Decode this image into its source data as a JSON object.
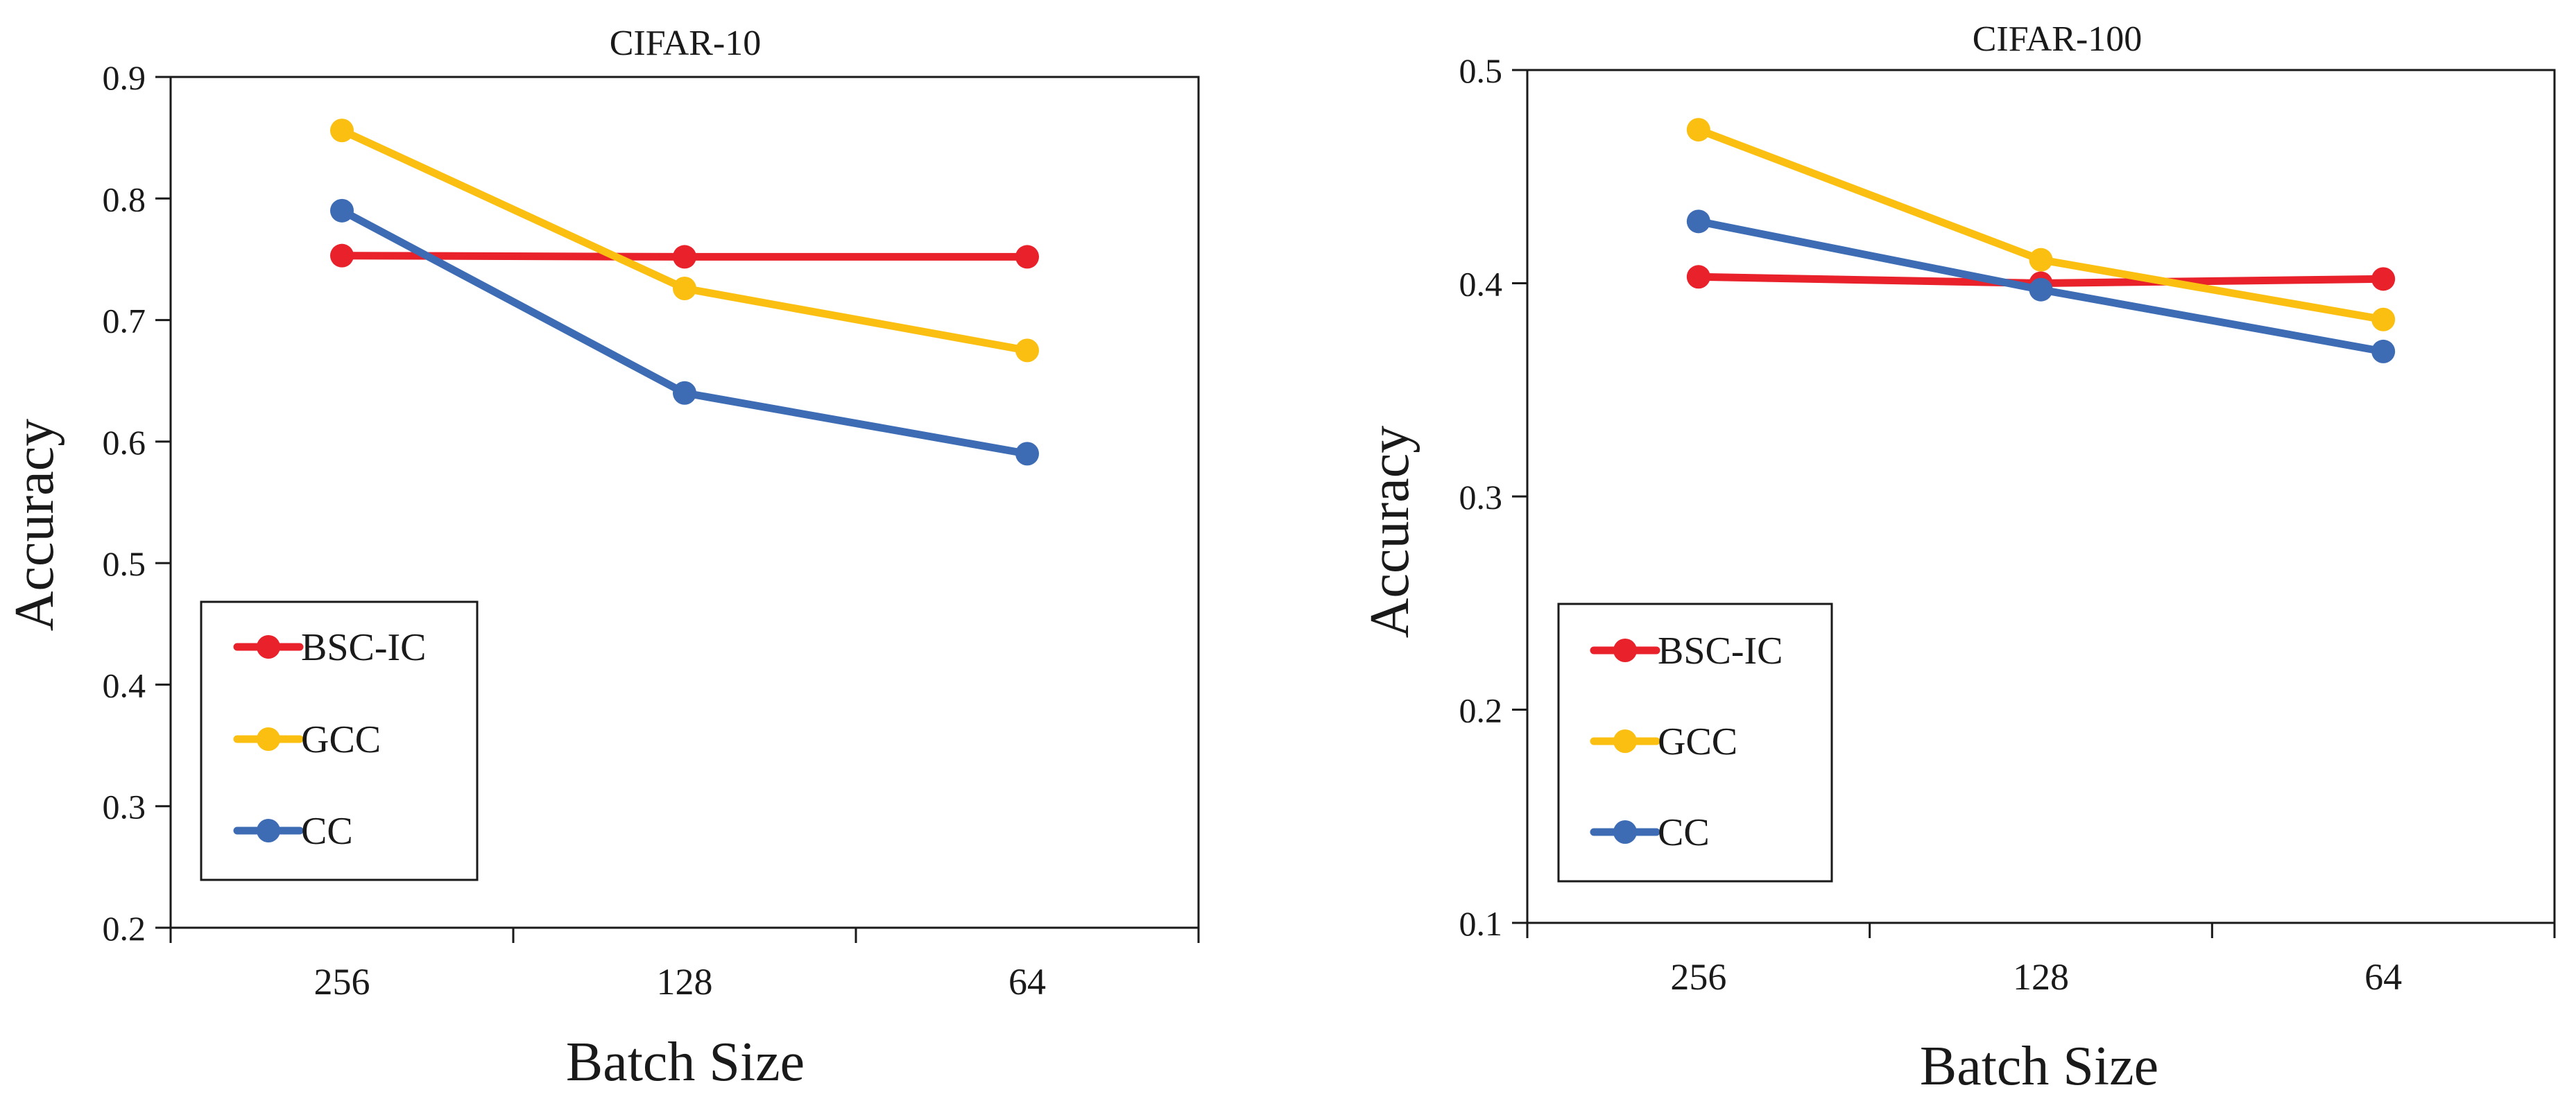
{
  "figure": {
    "background": "#ffffff",
    "axis_color": "#1a1a1a",
    "series_colors": {
      "BSC-IC": "#e8212b",
      "GCC": "#fbbf12",
      "CC": "#3d6cb5"
    }
  },
  "chart_data": [
    {
      "type": "line",
      "title": "CIFAR-10",
      "xlabel": "Batch Size",
      "ylabel": "Accuracy",
      "categories": [
        "256",
        "128",
        "64"
      ],
      "ylim": [
        0.2,
        0.9
      ],
      "yticks": [
        0.2,
        0.3,
        0.4,
        0.5,
        0.6,
        0.7,
        0.8,
        0.9
      ],
      "ytick_labels": [
        "0.2",
        "0.3",
        "0.4",
        "0.5",
        "0.6",
        "0.7",
        "0.8",
        "0.9"
      ],
      "grid": false,
      "legend_position": "bottom-left",
      "series": [
        {
          "name": "BSC-IC",
          "color": "#e8212b",
          "values": [
            0.753,
            0.752,
            0.752
          ]
        },
        {
          "name": "GCC",
          "color": "#fbbf12",
          "values": [
            0.856,
            0.726,
            0.675
          ]
        },
        {
          "name": "CC",
          "color": "#3d6cb5",
          "values": [
            0.79,
            0.64,
            0.59
          ]
        }
      ]
    },
    {
      "type": "line",
      "title": "CIFAR-100",
      "xlabel": "Batch Size",
      "ylabel": "Accuracy",
      "categories": [
        "256",
        "128",
        "64"
      ],
      "ylim": [
        0.1,
        0.5
      ],
      "yticks": [
        0.1,
        0.2,
        0.3,
        0.4,
        0.5
      ],
      "ytick_labels": [
        "0.1",
        "0.2",
        "0.3",
        "0.4",
        "0.5"
      ],
      "grid": false,
      "legend_position": "bottom-left",
      "series": [
        {
          "name": "BSC-IC",
          "color": "#e8212b",
          "values": [
            0.403,
            0.4,
            0.402
          ]
        },
        {
          "name": "GCC",
          "color": "#fbbf12",
          "values": [
            0.472,
            0.411,
            0.383
          ]
        },
        {
          "name": "CC",
          "color": "#3d6cb5",
          "values": [
            0.429,
            0.397,
            0.368
          ]
        }
      ]
    }
  ]
}
